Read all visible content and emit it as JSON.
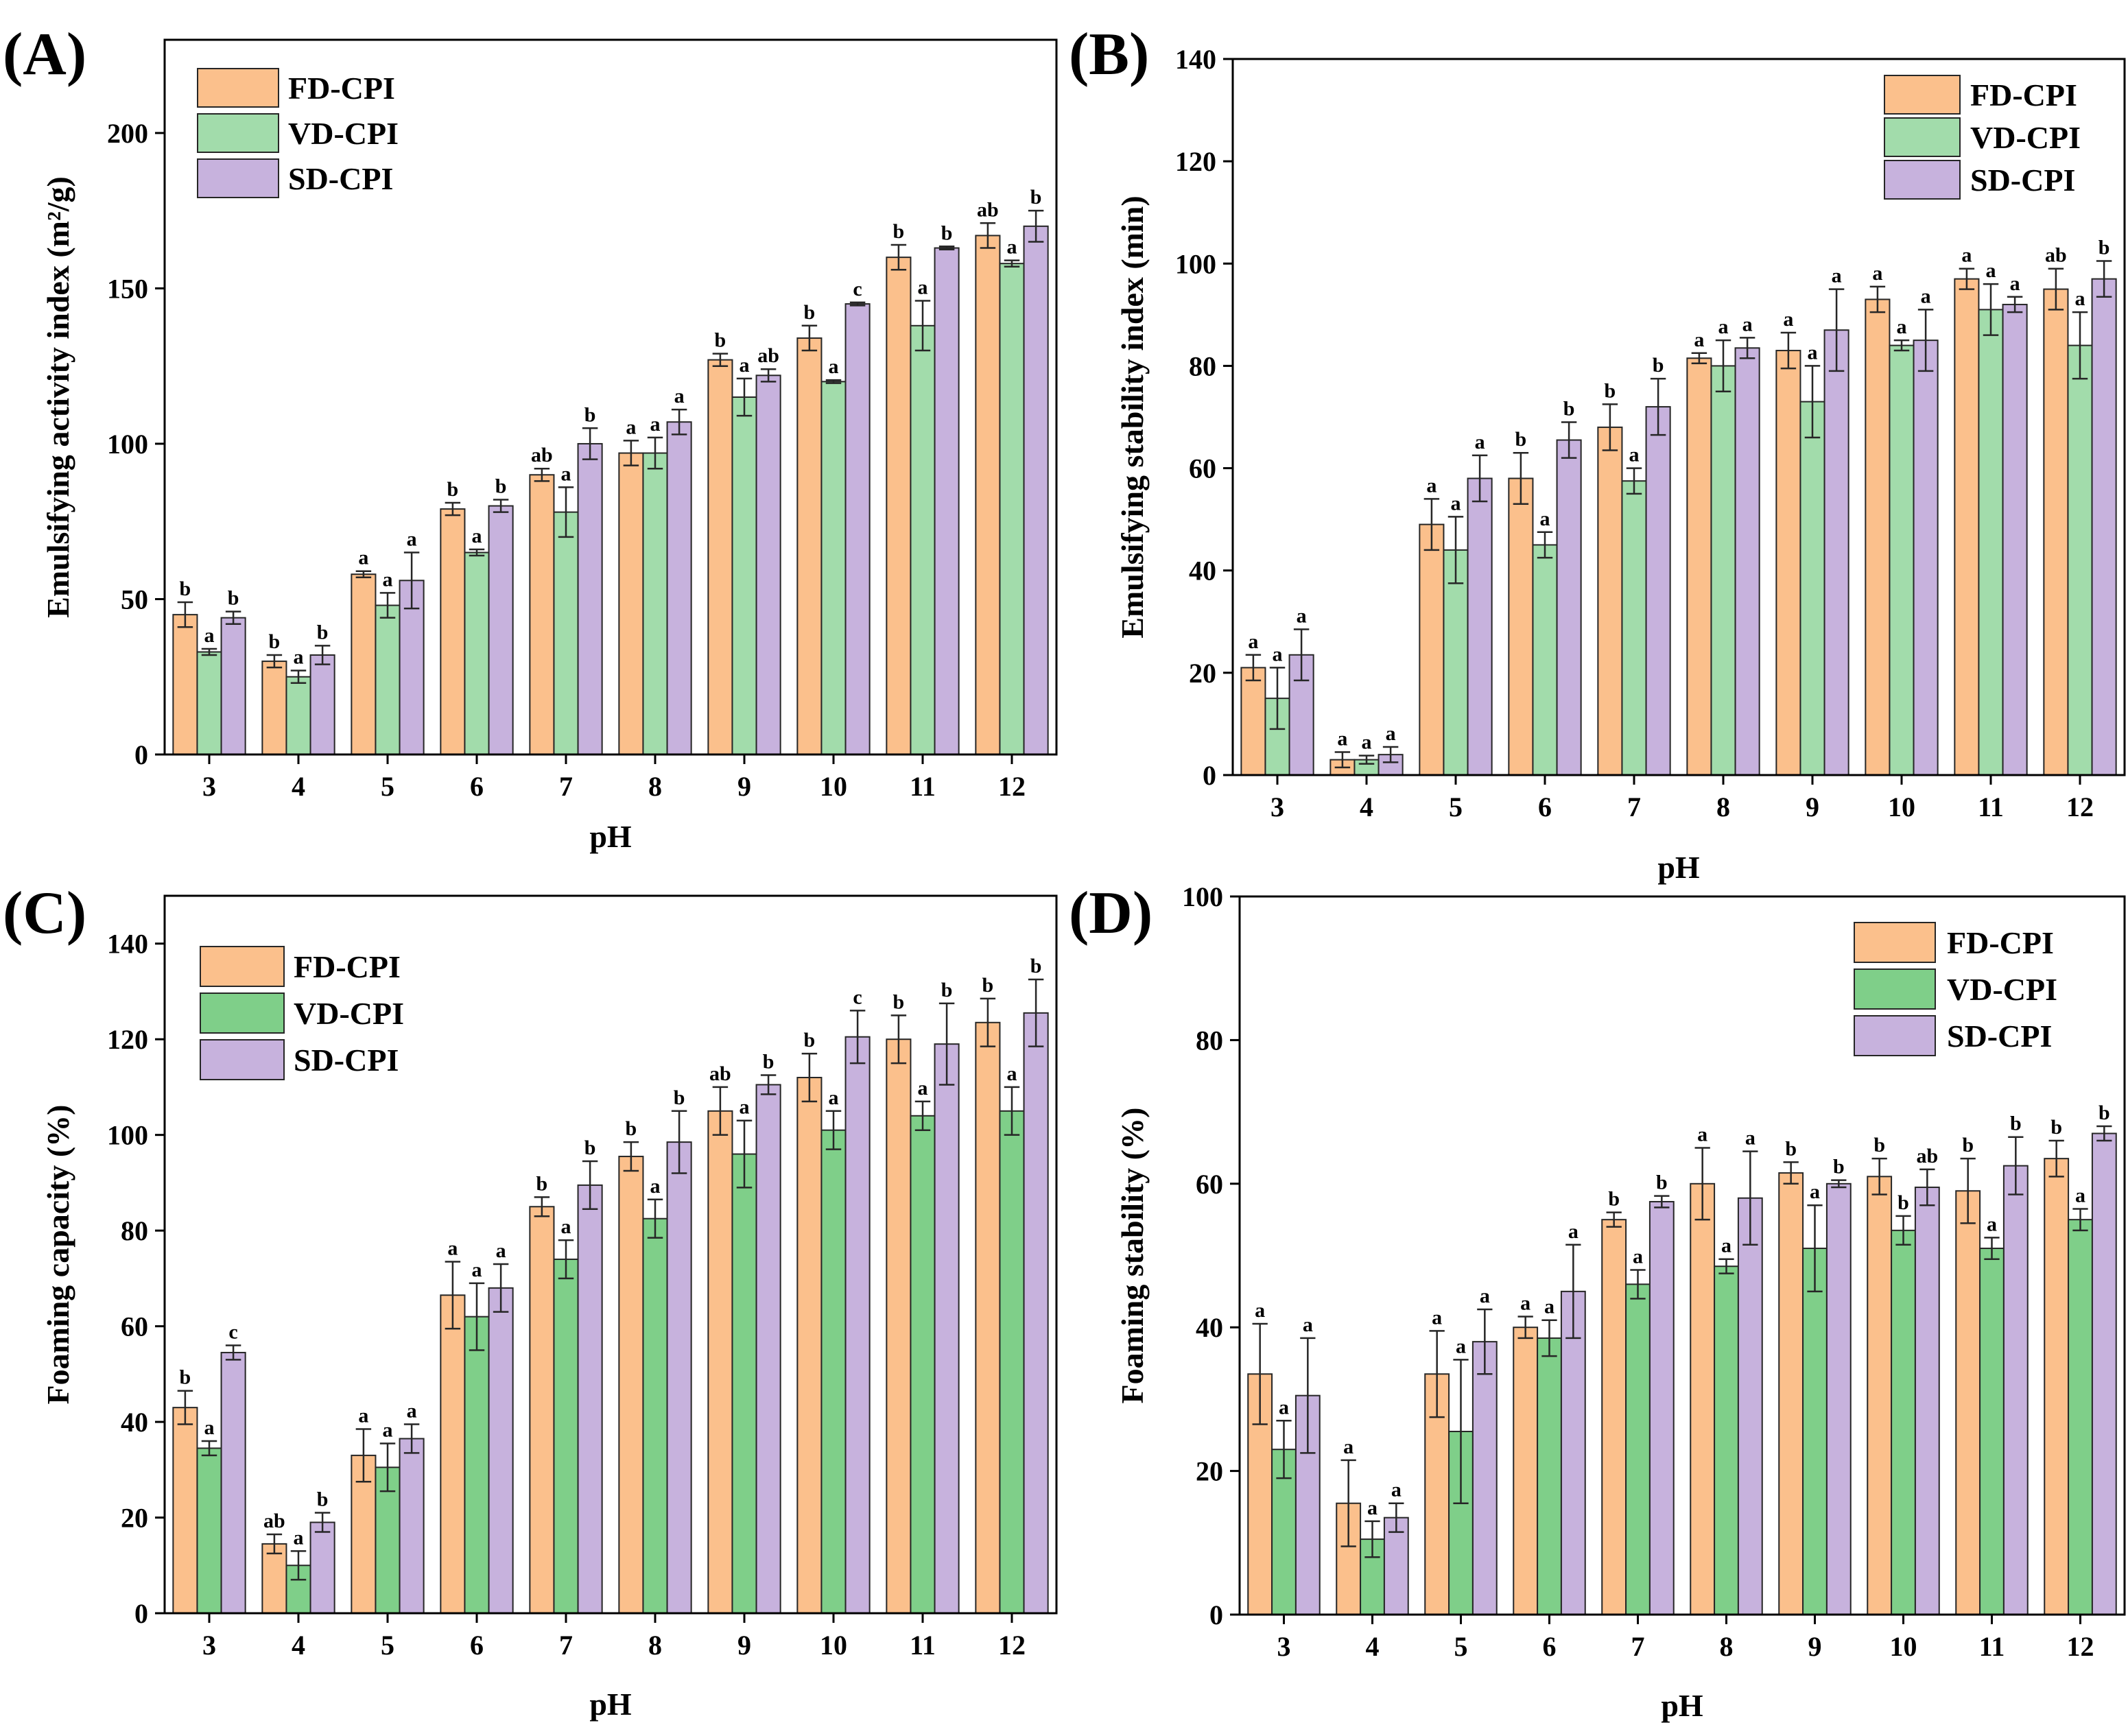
{
  "figure": {
    "panels": [
      "A",
      "B",
      "C",
      "D"
    ]
  },
  "colors": {
    "FD-CPI": "#fbc08c",
    "VD-CPI": "#a2dcab",
    "VD-CPI-dark": "#7fcf89",
    "SD-CPI": "#c7b2dd",
    "bar_edge": "#262626",
    "axis": "#000000"
  },
  "chart_data": [
    {
      "panel": "(A)",
      "type": "bar",
      "xlabel": "pH",
      "ylabel": "Emulsifying activity index (m²/g)",
      "categories": [
        "3",
        "4",
        "5",
        "6",
        "7",
        "8",
        "9",
        "10",
        "11",
        "12"
      ],
      "ylim": [
        0,
        230
      ],
      "yticks": [
        0,
        50,
        100,
        150,
        200
      ],
      "legend": "top-left",
      "series": [
        {
          "name": "FD-CPI",
          "color_key": "FD-CPI",
          "values": [
            45,
            30,
            58,
            79,
            90,
            97,
            127,
            134,
            160,
            167
          ],
          "errors": [
            4,
            2,
            1,
            2,
            2,
            4,
            2,
            4,
            4,
            4
          ],
          "sig": [
            "b",
            "b",
            "a",
            "b",
            "ab",
            "a",
            "b",
            "b",
            "b",
            "ab"
          ]
        },
        {
          "name": "VD-CPI",
          "color_key": "VD-CPI",
          "values": [
            33,
            25,
            48,
            65,
            78,
            97,
            115,
            120,
            138,
            158
          ],
          "errors": [
            1,
            2,
            4,
            1,
            8,
            5,
            6,
            0.5,
            8,
            1
          ],
          "sig": [
            "a",
            "a",
            "a",
            "a",
            "a",
            "a",
            "a",
            "a",
            "a",
            "a"
          ]
        },
        {
          "name": "SD-CPI",
          "color_key": "SD-CPI",
          "values": [
            44,
            32,
            56,
            80,
            100,
            107,
            122,
            145,
            163,
            170
          ],
          "errors": [
            2,
            3,
            9,
            2,
            5,
            4,
            2,
            0.5,
            0.5,
            5
          ],
          "sig": [
            "b",
            "b",
            "a",
            "b",
            "b",
            "a",
            "ab",
            "c",
            "b",
            "b"
          ]
        }
      ]
    },
    {
      "panel": "(B)",
      "type": "bar",
      "xlabel": "pH",
      "ylabel": "Emulsifying stability index (min)",
      "categories": [
        "3",
        "4",
        "5",
        "6",
        "7",
        "8",
        "9",
        "10",
        "11",
        "12"
      ],
      "ylim": [
        0,
        140
      ],
      "yticks": [
        0,
        20,
        40,
        60,
        80,
        100,
        120,
        140
      ],
      "legend": "top-right",
      "series": [
        {
          "name": "FD-CPI",
          "color_key": "FD-CPI",
          "values": [
            21,
            3,
            49,
            58,
            68,
            81.5,
            83,
            93,
            97,
            95
          ],
          "errors": [
            2.5,
            1.5,
            5,
            5,
            4.5,
            1,
            3.5,
            2.5,
            2,
            4
          ],
          "sig": [
            "a",
            "a",
            "a",
            "b",
            "b",
            "a",
            "a",
            "a",
            "a",
            "ab"
          ]
        },
        {
          "name": "VD-CPI",
          "color_key": "VD-CPI",
          "values": [
            15,
            3,
            44,
            45,
            57.5,
            80,
            73,
            84,
            91,
            84
          ],
          "errors": [
            6,
            0.8,
            6.5,
            2.5,
            2.5,
            5,
            7,
            1,
            5,
            6.5
          ],
          "sig": [
            "a",
            "a",
            "a",
            "a",
            "a",
            "a",
            "a",
            "a",
            "a",
            "a"
          ]
        },
        {
          "name": "SD-CPI",
          "color_key": "SD-CPI",
          "values": [
            23.5,
            4,
            58,
            65.5,
            72,
            83.5,
            87,
            85,
            92,
            97
          ],
          "errors": [
            5,
            1.5,
            4.5,
            3.5,
            5.5,
            2,
            8,
            6,
            1.5,
            3.5
          ],
          "sig": [
            "a",
            "a",
            "a",
            "b",
            "b",
            "a",
            "a",
            "a",
            "a",
            "b"
          ]
        }
      ]
    },
    {
      "panel": "(C)",
      "type": "bar",
      "xlabel": "pH",
      "ylabel": "Foaming capacity (%)",
      "categories": [
        "3",
        "4",
        "5",
        "6",
        "7",
        "8",
        "9",
        "10",
        "11",
        "12"
      ],
      "ylim": [
        0,
        150
      ],
      "yticks": [
        0,
        20,
        40,
        60,
        80,
        100,
        120,
        140
      ],
      "legend": "top-left",
      "series": [
        {
          "name": "FD-CPI",
          "color_key": "FD-CPI",
          "values": [
            43,
            14.5,
            33,
            66.5,
            85,
            95.5,
            105,
            112,
            120,
            123.5
          ],
          "errors": [
            3.5,
            2,
            5.5,
            7,
            2,
            3,
            5,
            5,
            5,
            5
          ],
          "sig": [
            "b",
            "ab",
            "a",
            "a",
            "b",
            "b",
            "ab",
            "b",
            "b",
            "b"
          ]
        },
        {
          "name": "VD-CPI",
          "color_key": "VD-CPI-dark",
          "values": [
            34.5,
            10,
            30.5,
            62,
            74,
            82.5,
            96,
            101,
            104,
            105
          ],
          "errors": [
            1.5,
            3,
            5,
            7,
            4,
            4,
            7,
            4,
            3,
            5
          ],
          "sig": [
            "a",
            "a",
            "a",
            "a",
            "a",
            "a",
            "a",
            "a",
            "a",
            "a"
          ]
        },
        {
          "name": "SD-CPI",
          "color_key": "SD-CPI",
          "values": [
            54.5,
            19,
            36.5,
            68,
            89.5,
            98.5,
            110.5,
            120.5,
            119,
            125.5
          ],
          "errors": [
            1.5,
            2,
            3,
            5,
            5,
            6.5,
            2,
            5.5,
            8.5,
            7
          ],
          "sig": [
            "c",
            "b",
            "a",
            "a",
            "b",
            "b",
            "b",
            "c",
            "b",
            "b"
          ]
        }
      ]
    },
    {
      "panel": "(D)",
      "type": "bar",
      "xlabel": "pH",
      "ylabel": "Foaming stability (%)",
      "categories": [
        "3",
        "4",
        "5",
        "6",
        "7",
        "8",
        "9",
        "10",
        "11",
        "12"
      ],
      "ylim": [
        0,
        100
      ],
      "yticks": [
        0,
        20,
        40,
        60,
        80,
        100
      ],
      "legend": "top-right",
      "series": [
        {
          "name": "FD-CPI",
          "color_key": "FD-CPI",
          "values": [
            33.5,
            15.5,
            33.5,
            40,
            55,
            60,
            61.5,
            61,
            59,
            63.5
          ],
          "errors": [
            7,
            6,
            6,
            1.5,
            1,
            5,
            1.5,
            2.5,
            4.5,
            2.5
          ],
          "sig": [
            "a",
            "a",
            "a",
            "a",
            "b",
            "a",
            "b",
            "b",
            "b",
            "b"
          ]
        },
        {
          "name": "VD-CPI",
          "color_key": "VD-CPI-dark",
          "values": [
            23,
            10.5,
            25.5,
            38.5,
            46,
            48.5,
            51,
            53.5,
            51,
            55
          ],
          "errors": [
            4,
            2.5,
            10,
            2.5,
            2,
            1,
            6,
            2,
            1.5,
            1.5
          ],
          "sig": [
            "a",
            "a",
            "a",
            "a",
            "a",
            "a",
            "a",
            "b",
            "a",
            "a"
          ]
        },
        {
          "name": "SD-CPI",
          "color_key": "SD-CPI",
          "values": [
            30.5,
            13.5,
            38,
            45,
            57.5,
            58,
            60,
            59.5,
            62.5,
            67
          ],
          "errors": [
            8,
            2,
            4.5,
            6.5,
            0.8,
            6.5,
            0.5,
            2.5,
            4,
            1
          ],
          "sig": [
            "a",
            "a",
            "a",
            "a",
            "b",
            "a",
            "b",
            "ab",
            "b",
            "b"
          ]
        }
      ]
    }
  ]
}
